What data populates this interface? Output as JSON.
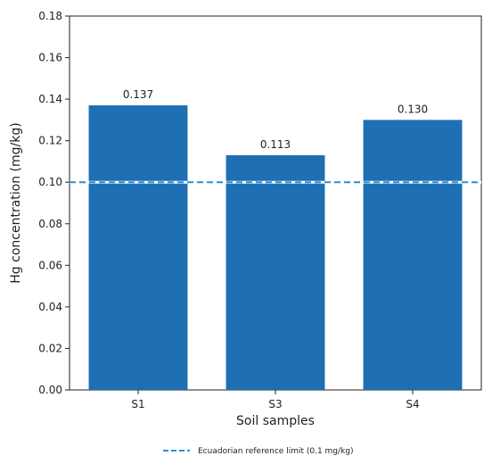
{
  "chart_data": {
    "type": "bar",
    "categories": [
      "S1",
      "S3",
      "S4"
    ],
    "series": [
      {
        "values": [
          0.137,
          0.113,
          0.13
        ],
        "color": "#1f6fb4"
      }
    ],
    "data_labels": [
      "0.137",
      "0.113",
      "0.130"
    ],
    "xlabel": "Soil samples",
    "ylabel": "Hg concentration (mg/kg)",
    "ylim": [
      0,
      0.18
    ],
    "y_ticks": [
      "0.00",
      "0.02",
      "0.04",
      "0.06",
      "0.08",
      "0.10",
      "0.12",
      "0.14",
      "0.16",
      "0.18"
    ],
    "reference_line": {
      "value": 0.1,
      "label": "Ecuadorian reference limit (0.1 mg/kg)",
      "color": "#2a8fd0",
      "style": "dashed"
    },
    "grid": false,
    "legend_position": "bottom-center"
  }
}
